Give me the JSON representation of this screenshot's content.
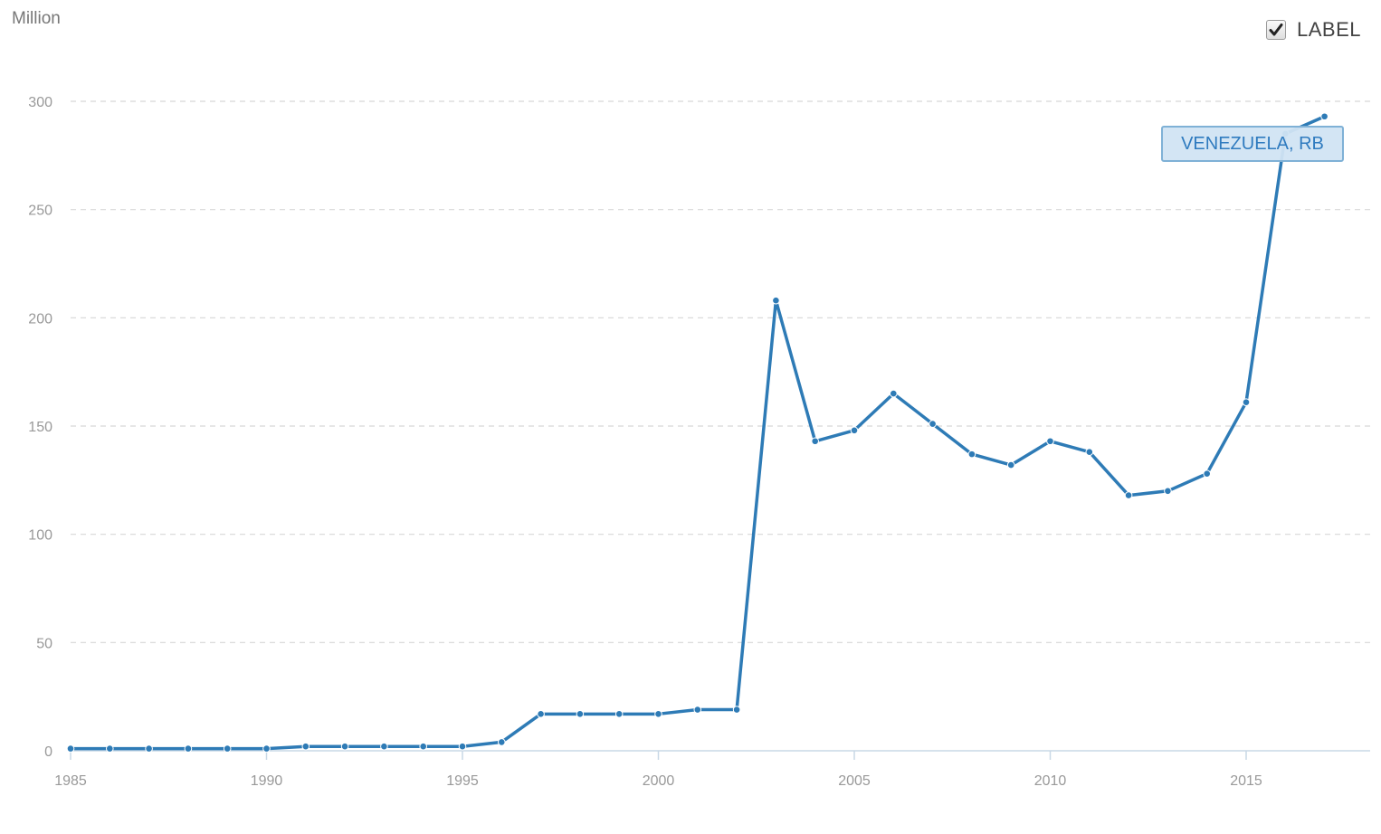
{
  "header": {
    "unit_label": "Million",
    "label_toggle": {
      "text": "LABEL",
      "checked": true
    }
  },
  "colors": {
    "series": "#2e7bb6",
    "grid": "#d8d8d8",
    "axis": "#c8d8e6",
    "tick_text": "#999999"
  },
  "chart_data": {
    "type": "line",
    "title": "",
    "xlabel": "",
    "ylabel": "Million",
    "xlim": [
      1985,
      2018
    ],
    "ylim": [
      0,
      300
    ],
    "x_ticks": [
      1985,
      1990,
      1995,
      2000,
      2005,
      2010,
      2015
    ],
    "y_ticks": [
      0,
      50,
      100,
      150,
      200,
      250,
      300
    ],
    "grid": true,
    "series": [
      {
        "name": "VENEZUELA, RB",
        "x": [
          1985,
          1986,
          1987,
          1988,
          1989,
          1990,
          1991,
          1992,
          1993,
          1994,
          1995,
          1996,
          1997,
          1998,
          1999,
          2000,
          2001,
          2002,
          2003,
          2004,
          2005,
          2006,
          2007,
          2008,
          2009,
          2010,
          2011,
          2012,
          2013,
          2014,
          2015,
          2016,
          2017
        ],
        "values": [
          1,
          1,
          1,
          1,
          1,
          1,
          2,
          2,
          2,
          2,
          2,
          4,
          17,
          17,
          17,
          17,
          19,
          19,
          208,
          143,
          148,
          165,
          151,
          137,
          132,
          143,
          138,
          118,
          120,
          128,
          161,
          285,
          293
        ]
      }
    ]
  }
}
